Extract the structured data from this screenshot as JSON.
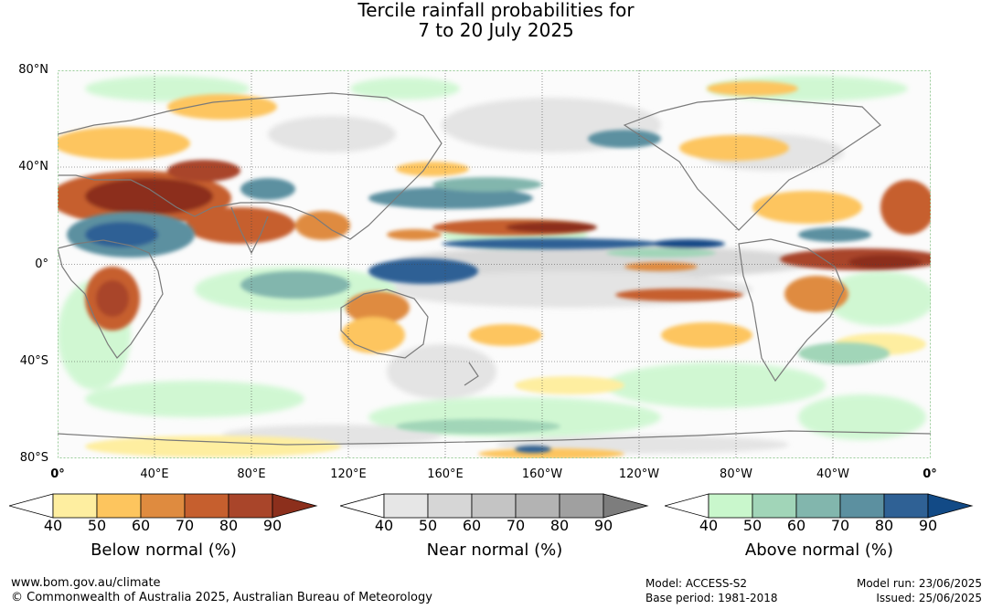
{
  "title": {
    "line1": "Tercile rainfall probabilities for",
    "line2": "7 to 20 July 2025"
  },
  "map": {
    "lat_labels": [
      "80°N",
      "40°N",
      "0°",
      "40°S",
      "80°S"
    ],
    "lon_labels": [
      "0°",
      "40°E",
      "80°E",
      "120°E",
      "160°E",
      "160°W",
      "120°W",
      "80°W",
      "40°W",
      "0°"
    ]
  },
  "legends": [
    {
      "id": "below",
      "title": "Below normal (%)",
      "ticks": [
        "40",
        "50",
        "60",
        "70",
        "80",
        "90"
      ],
      "colors": [
        "#ffffff",
        "#feeea0",
        "#fdc55e",
        "#df8b3f",
        "#c65f2e",
        "#a9452a",
        "#8c2f1c"
      ]
    },
    {
      "id": "near",
      "title": "Near normal (%)",
      "ticks": [
        "40",
        "50",
        "60",
        "70",
        "80",
        "90"
      ],
      "colors": [
        "#ffffff",
        "#e6e6e6",
        "#d6d6d6",
        "#c4c4c4",
        "#b3b3b3",
        "#a0a0a0",
        "#7d7d7d"
      ]
    },
    {
      "id": "above",
      "title": "Above normal (%)",
      "ticks": [
        "40",
        "50",
        "60",
        "70",
        "80",
        "90"
      ],
      "colors": [
        "#ffffff",
        "#c9f7cc",
        "#a1d5b8",
        "#82b6ad",
        "#5c90a0",
        "#2f6195",
        "#124a86"
      ]
    }
  ],
  "footer": {
    "url": "www.bom.gov.au/climate",
    "copyright": "© Commonwealth of Australia 2025, Australian Bureau of Meteorology",
    "model": "Model: ACCESS-S2",
    "base_period": "Base period: 1981-2018",
    "model_run": "Model run: 23/06/2025",
    "issued": "Issued: 25/06/2025"
  }
}
